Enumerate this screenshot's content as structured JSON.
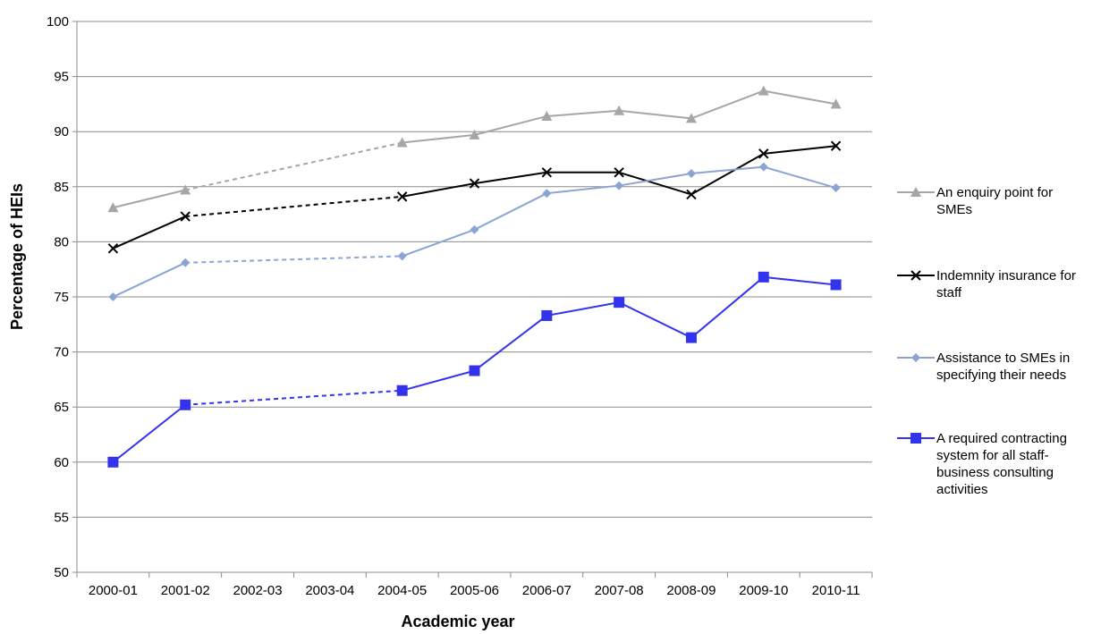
{
  "chart_data": {
    "type": "line",
    "title": "",
    "xlabel": "Academic year",
    "ylabel": "Percentage of HEIs",
    "ylim": [
      50,
      100
    ],
    "yticks": [
      50,
      55,
      60,
      65,
      70,
      75,
      80,
      85,
      90,
      95,
      100
    ],
    "categories": [
      "2000-01",
      "2001-02",
      "2002-03",
      "2003-04",
      "2004-05",
      "2005-06",
      "2006-07",
      "2007-08",
      "2008-09",
      "2009-10",
      "2010-11"
    ],
    "grid": "horizontal",
    "legend_position": "right",
    "missing_categories_dashed": [
      "2002-03",
      "2003-04"
    ],
    "series": [
      {
        "name": "An enquiry point for SMEs",
        "legend_lines": [
          "An enquiry point for",
          "SMEs"
        ],
        "marker": "triangle",
        "color": "#a6a6a6",
        "values": [
          83.1,
          84.7,
          null,
          null,
          89.0,
          89.7,
          91.4,
          91.9,
          91.2,
          93.7,
          92.5
        ]
      },
      {
        "name": "Indemnity insurance for staff",
        "legend_lines": [
          "Indemnity insurance for",
          "staff"
        ],
        "marker": "x",
        "color": "#000000",
        "values": [
          79.4,
          82.3,
          null,
          null,
          84.1,
          85.3,
          86.3,
          86.3,
          84.3,
          88.0,
          88.7
        ]
      },
      {
        "name": "Assistance to SMEs in specifying their needs",
        "legend_lines": [
          "Assistance to SMEs in",
          "specifying their needs"
        ],
        "marker": "diamond",
        "color": "#8aa5d3",
        "values": [
          75.0,
          78.1,
          null,
          null,
          78.7,
          81.1,
          84.4,
          85.1,
          86.2,
          86.8,
          84.9
        ]
      },
      {
        "name": "A required contracting system for all staff-business consulting activities",
        "legend_lines": [
          "A required contracting",
          "system for all staff-",
          "business consulting",
          "activities"
        ],
        "marker": "square",
        "color": "#3333ee",
        "values": [
          60.0,
          65.2,
          null,
          null,
          66.5,
          68.3,
          73.3,
          74.5,
          71.3,
          76.8,
          76.1
        ]
      }
    ]
  }
}
